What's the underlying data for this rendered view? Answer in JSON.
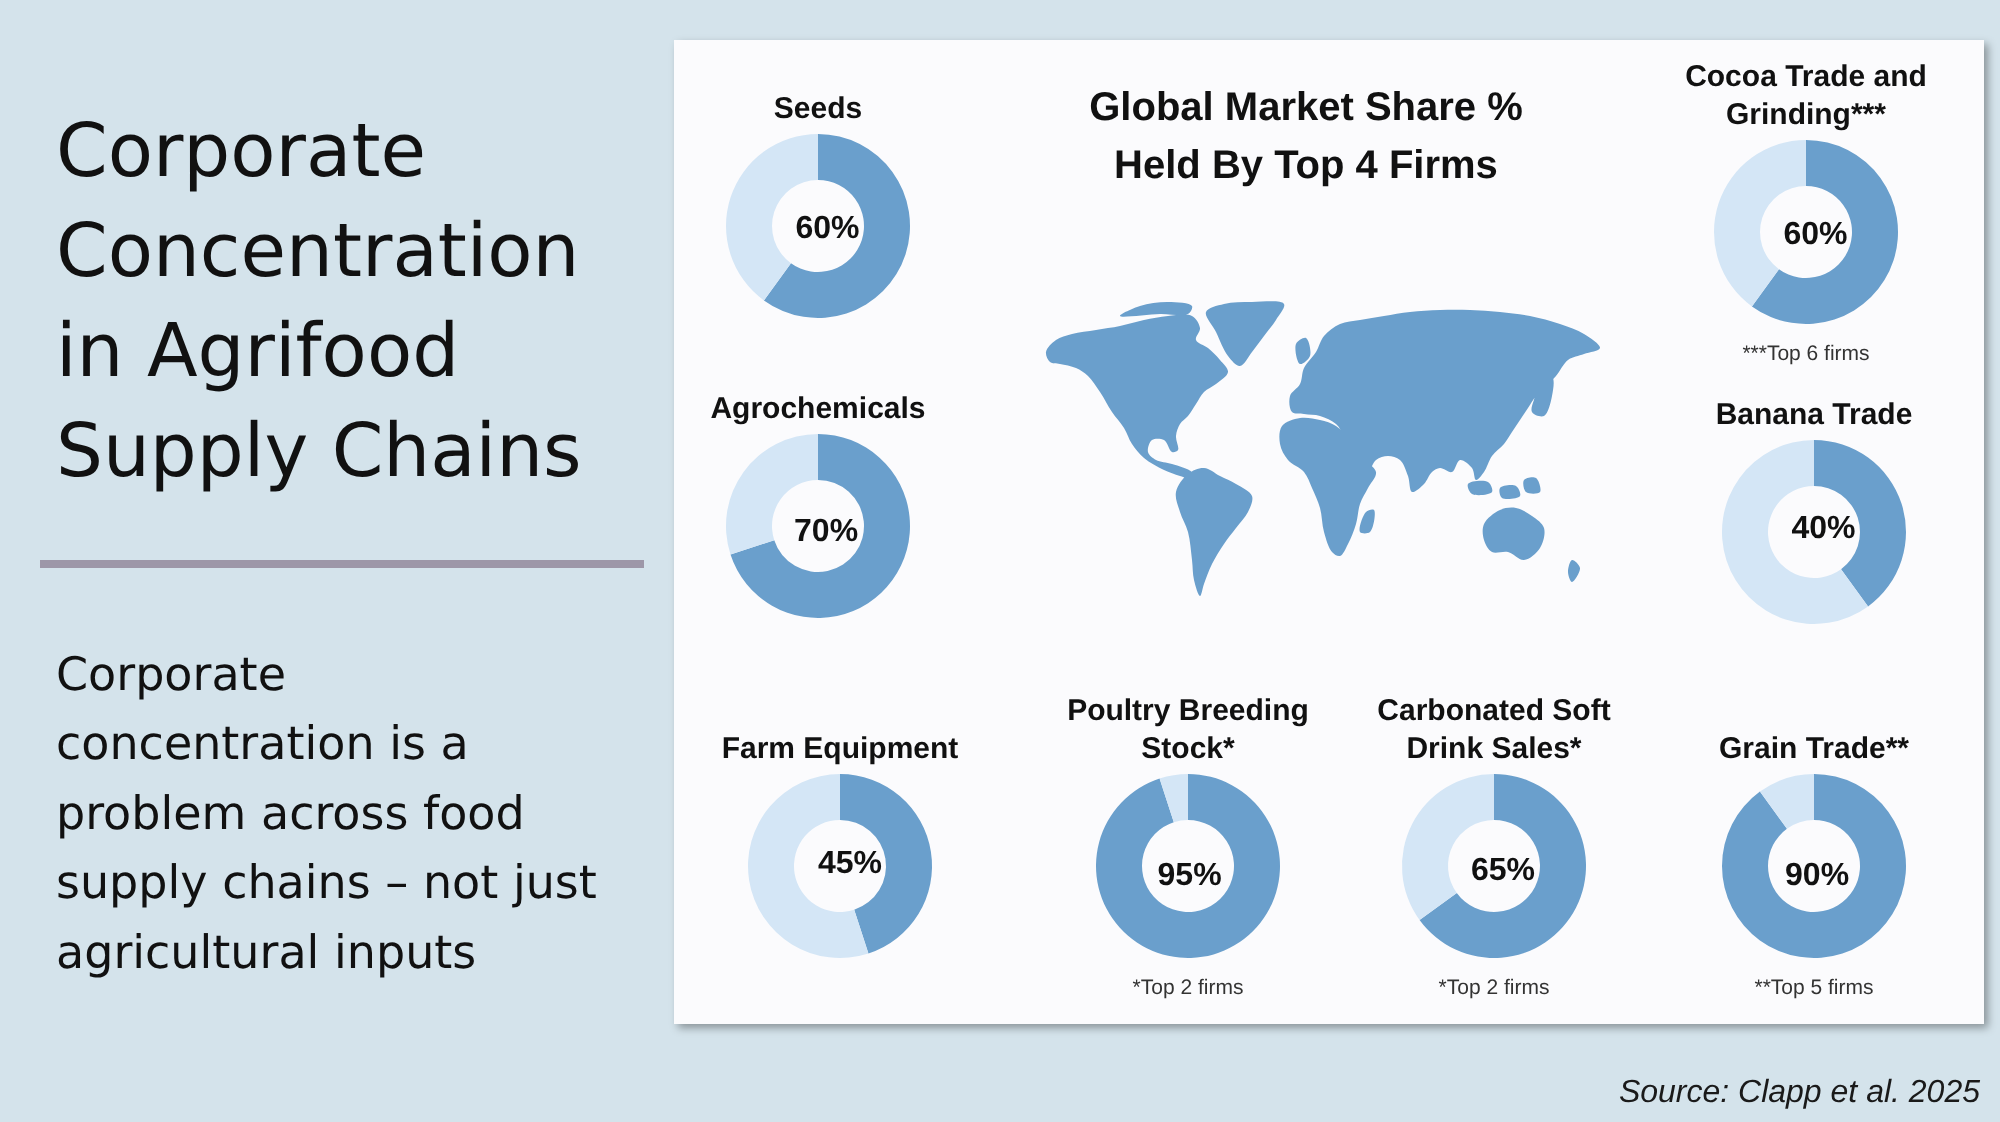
{
  "chart_data": [
    {
      "type": "other",
      "title": "Corporate Concentration in Agrifood Supply Chains",
      "annotations": [
        "Corporate concentration is a problem across food supply chains – not just agricultural inputs",
        "Source: Clapp et al. 2025"
      ]
    },
    {
      "type": "donut",
      "title": "Seeds",
      "categories": [
        null,
        null
      ],
      "values": [
        60,
        40
      ],
      "colors": [
        "#6a9fcc",
        "#d4e6f6"
      ],
      "value_labels": [
        "60%",
        null
      ]
    },
    {
      "type": "other",
      "title": "Global Market Share % Held By Top 4 Firms"
    },
    {
      "type": "donut",
      "title": "Cocoa Trade and Grinding***",
      "categories": [
        null,
        null
      ],
      "values": [
        60,
        40
      ],
      "colors": [
        "#6a9fcc",
        "#d4e6f6"
      ],
      "value_labels": [
        "60%",
        null
      ],
      "annotations": [
        "***Top 6 firms"
      ]
    },
    {
      "type": "donut",
      "title": "Agrochemicals",
      "categories": [
        null,
        null
      ],
      "values": [
        70,
        30
      ],
      "colors": [
        "#6a9fcc",
        "#d4e6f6"
      ],
      "value_labels": [
        "70%",
        null
      ]
    },
    {
      "type": "donut",
      "title": "Banana Trade",
      "categories": [
        null,
        null
      ],
      "values": [
        40,
        60
      ],
      "colors": [
        "#6a9fcc",
        "#d4e6f6"
      ],
      "value_labels": [
        "40%",
        null
      ]
    },
    {
      "type": "donut",
      "title": "Farm Equipment",
      "categories": [
        null,
        null
      ],
      "values": [
        45,
        55
      ],
      "colors": [
        "#6a9fcc",
        "#d4e6f6"
      ],
      "value_labels": [
        "45%",
        null
      ]
    },
    {
      "type": "donut",
      "title": "Poultry Breeding Stock*",
      "categories": [
        null,
        null
      ],
      "values": [
        95,
        5
      ],
      "colors": [
        "#6a9fcc",
        "#d4e6f6"
      ],
      "value_labels": [
        "95%",
        null
      ],
      "annotations": [
        "*Top 2 firms"
      ]
    },
    {
      "type": "donut",
      "title": "Carbonated Soft Drink Sales*",
      "categories": [
        null,
        null
      ],
      "values": [
        65,
        35
      ],
      "colors": [
        "#6a9fcc",
        "#d4e6f6"
      ],
      "value_labels": [
        "65%",
        null
      ],
      "annotations": [
        "*Top 2 firms"
      ]
    },
    {
      "type": "donut",
      "title": "Grain Trade**",
      "categories": [
        null,
        null
      ],
      "values": [
        90,
        10
      ],
      "colors": [
        "#6a9fcc",
        "#d4e6f6"
      ],
      "value_labels": [
        "90%",
        null
      ],
      "annotations": [
        "**Top 5 firms"
      ]
    }
  ]
}
